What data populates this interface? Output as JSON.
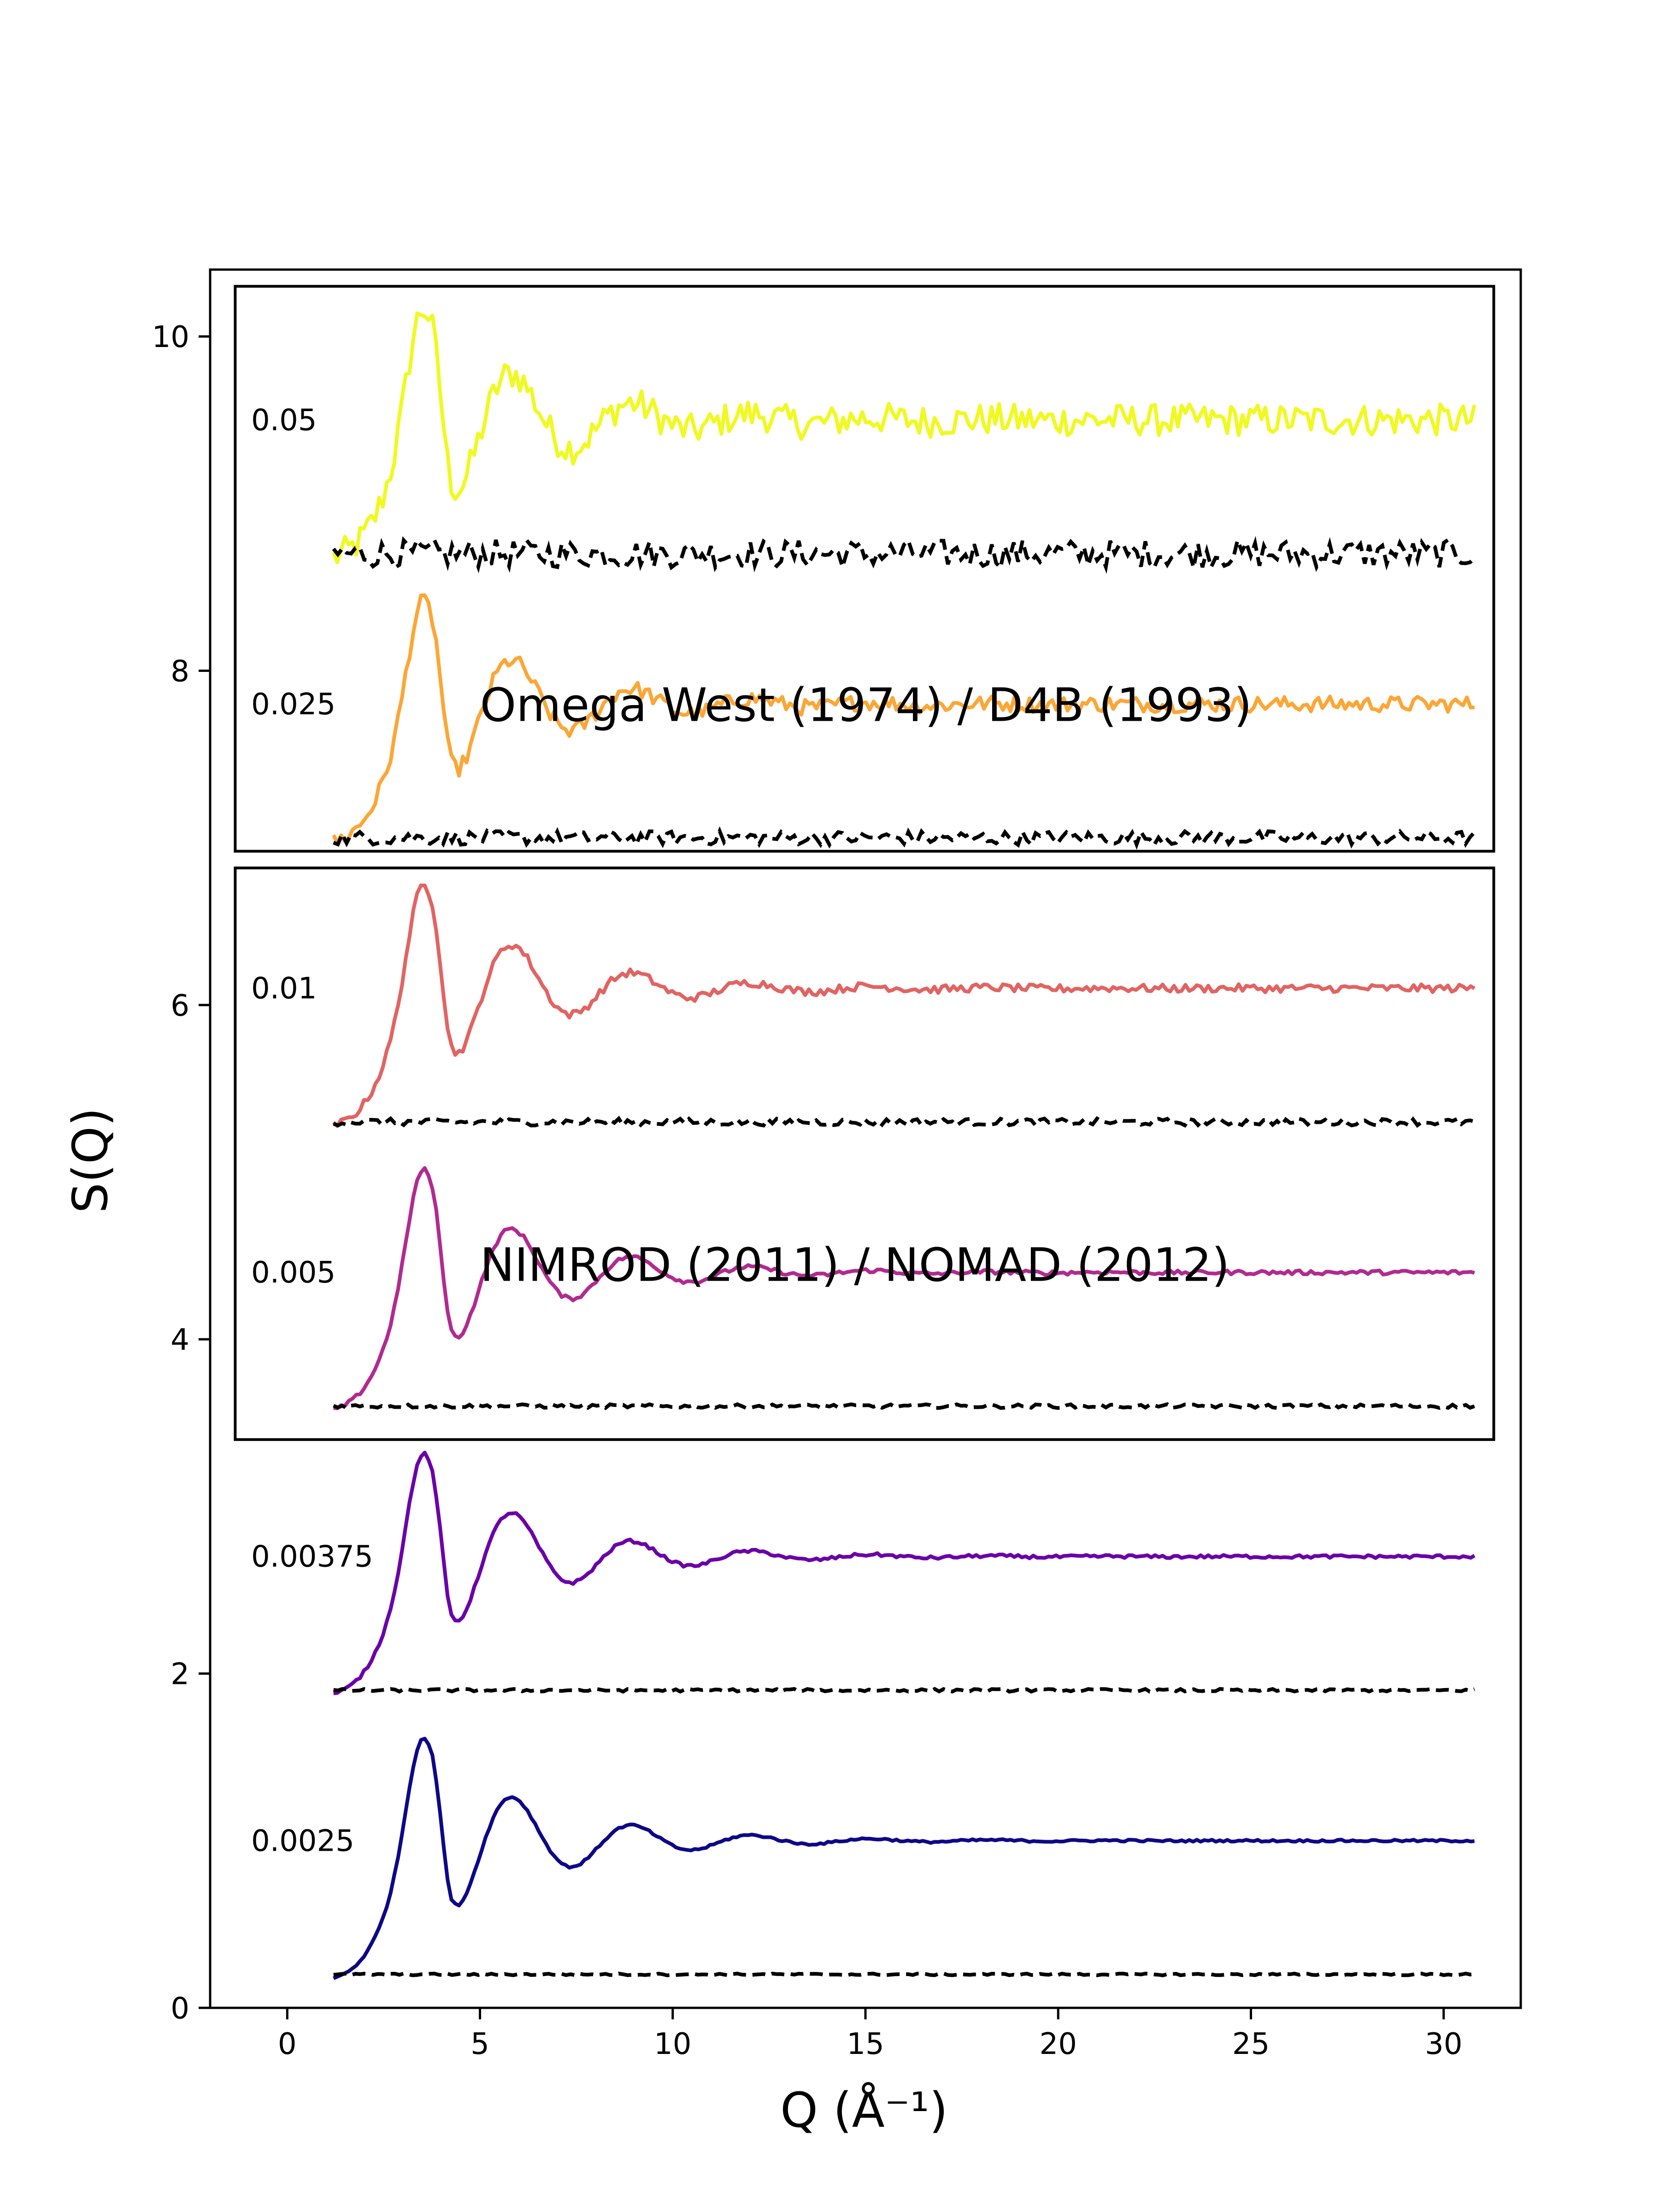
{
  "chart_data": {
    "type": "line",
    "xlabel": "Q (Å⁻¹)",
    "ylabel": "S(Q)",
    "xlim": [
      -2.0,
      32.0
    ],
    "ylim": [
      0.0,
      10.4
    ],
    "x_ticks": [
      "0",
      "5",
      "10",
      "15",
      "20",
      "25",
      "30"
    ],
    "y_ticks": [
      "0",
      "2",
      "4",
      "6",
      "8",
      "10"
    ],
    "grid": false,
    "legend": "none",
    "q_range": [
      1.2,
      30.8
    ],
    "annotation_boxes": [
      {
        "label": "Omega West (1974) / D4B (1993)",
        "y_range": [
          6.92,
          10.3
        ]
      },
      {
        "label": "NIMROD (2011) / NOMAD (2012)",
        "y_range": [
          3.4,
          6.82
        ]
      }
    ],
    "series": [
      {
        "noise_label": "0.05",
        "color": "#f0f921",
        "s_low_q": 8.65,
        "s_peak": 10.25,
        "s_asymptote": 9.5,
        "dashed_baseline": 8.7,
        "fluctuation": 0.06
      },
      {
        "noise_label": "0.025",
        "color": "#fca636",
        "s_low_q": 6.95,
        "s_peak": 8.5,
        "s_asymptote": 7.8,
        "dashed_baseline": 7.0,
        "fluctuation": 0.03
      },
      {
        "noise_label": "0.01",
        "color": "#e16462",
        "s_low_q": 5.25,
        "s_peak": 6.8,
        "s_asymptote": 6.1,
        "dashed_baseline": 5.3,
        "fluctuation": 0.015
      },
      {
        "noise_label": "0.005",
        "color": "#b12a90",
        "s_low_q": 3.55,
        "s_peak": 5.1,
        "s_asymptote": 4.4,
        "dashed_baseline": 3.6,
        "fluctuation": 0.008
      },
      {
        "noise_label": "0.00375",
        "color": "#6a00a8",
        "s_low_q": 1.85,
        "s_peak": 3.4,
        "s_asymptote": 2.7,
        "dashed_baseline": 1.9,
        "fluctuation": 0.006
      },
      {
        "noise_label": "0.0025",
        "color": "#0d0887",
        "s_low_q": 0.15,
        "s_peak": 1.7,
        "s_asymptote": 1.0,
        "dashed_baseline": 0.2,
        "fluctuation": 0.004
      }
    ]
  }
}
